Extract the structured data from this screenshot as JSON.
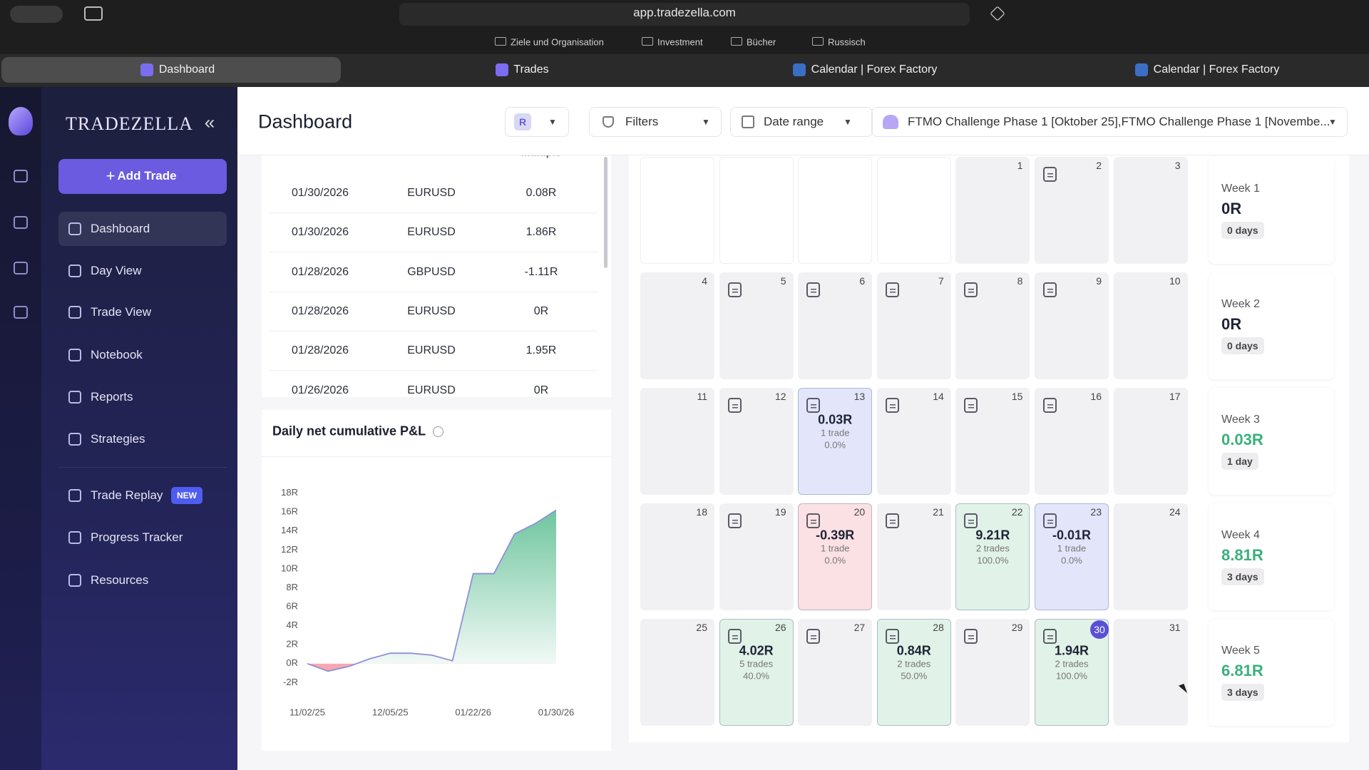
{
  "browser": {
    "url": "app.tradezella.com",
    "bookmarks": [
      "Ziele und Organisation",
      "Investment",
      "Bücher",
      "Russisch"
    ],
    "tabs": [
      "Dashboard",
      "Trades",
      "Calendar | Forex Factory",
      "Calendar | Forex Factory"
    ]
  },
  "sidebar": {
    "brand": "TRADEZELLA",
    "add_trade": "Add Trade",
    "nav": [
      {
        "label": "Dashboard",
        "active": true
      },
      {
        "label": "Day View"
      },
      {
        "label": "Trade View"
      },
      {
        "label": "Notebook"
      },
      {
        "label": "Reports"
      },
      {
        "label": "Strategies"
      },
      {
        "label": "Trade Replay",
        "badge": "NEW"
      },
      {
        "label": "Progress Tracker"
      },
      {
        "label": "Resources"
      }
    ]
  },
  "header": {
    "title": "Dashboard",
    "chip": "R",
    "filters": "Filters",
    "date_range": "Date range",
    "accounts": "FTMO Challenge Phase 1 [Oktober 25],FTMO Challenge Phase 1 [Novembe..."
  },
  "trades_table": {
    "header": "Multiple",
    "rows": [
      [
        "01/30/2026",
        "EURUSD",
        "0.08R"
      ],
      [
        "01/30/2026",
        "EURUSD",
        "1.86R"
      ],
      [
        "01/28/2026",
        "GBPUSD",
        "-1.11R"
      ],
      [
        "01/28/2026",
        "EURUSD",
        "0R"
      ],
      [
        "01/28/2026",
        "EURUSD",
        "1.95R"
      ],
      [
        "01/26/2026",
        "EURUSD",
        "0R"
      ]
    ]
  },
  "pnl_chart": {
    "type": "area",
    "title": "Daily net cumulative P&L",
    "categories": [
      "11/02/25",
      null,
      null,
      null,
      "12/05/25",
      null,
      null,
      null,
      "01/22/26",
      null,
      null,
      null,
      "01/30/26"
    ],
    "values": [
      0,
      -0.8,
      -0.3,
      0.5,
      1.1,
      1.1,
      0.9,
      0.3,
      9.5,
      9.5,
      13.7,
      14.8,
      16.2
    ],
    "ylim": [
      -2.8,
      18.8
    ],
    "yticks": [
      {
        "value": -2,
        "label": "-2R"
      },
      {
        "value": 0,
        "label": "0R"
      },
      {
        "value": 2,
        "label": "2R"
      },
      {
        "value": 4,
        "label": "4R"
      },
      {
        "value": 6,
        "label": "6R"
      },
      {
        "value": 8,
        "label": "8R"
      },
      {
        "value": 10,
        "label": "10R"
      },
      {
        "value": 12,
        "label": "12R"
      },
      {
        "value": 14,
        "label": "14R"
      },
      {
        "value": 16,
        "label": "16R"
      },
      {
        "value": 18,
        "label": "18R"
      }
    ],
    "line_color": "#8f90d8",
    "fill_color": "#3fb27f",
    "negative_color": "#f06a7a"
  },
  "calendar": {
    "rows": [
      [
        null,
        null,
        null,
        null,
        {
          "day": 1
        },
        {
          "day": 2,
          "note": true
        },
        {
          "day": 3
        }
      ],
      [
        {
          "day": 4
        },
        {
          "day": 5,
          "note": true
        },
        {
          "day": 6,
          "note": true
        },
        {
          "day": 7,
          "note": true
        },
        {
          "day": 8,
          "note": true
        },
        {
          "day": 9,
          "note": true
        },
        {
          "day": 10
        }
      ],
      [
        {
          "day": 11
        },
        {
          "day": 12,
          "note": true
        },
        {
          "day": 13,
          "note": true,
          "pnl": "0.03R",
          "trades": "1 trade",
          "win_rate": "0.0%",
          "color": "#e3e6fb"
        },
        {
          "day": 14,
          "note": true
        },
        {
          "day": 15,
          "note": true
        },
        {
          "day": 16,
          "note": true
        },
        {
          "day": 17
        }
      ],
      [
        {
          "day": 18
        },
        {
          "day": 19,
          "note": true
        },
        {
          "day": 20,
          "note": true,
          "pnl": "-0.39R",
          "trades": "1 trade",
          "win_rate": "0.0%",
          "color": "#fbe1e3"
        },
        {
          "day": 21,
          "note": true
        },
        {
          "day": 22,
          "note": true,
          "pnl": "9.21R",
          "trades": "2 trades",
          "win_rate": "100.0%",
          "color": "#e1f2e8"
        },
        {
          "day": 23,
          "note": true,
          "pnl": "-0.01R",
          "trades": "1 trade",
          "win_rate": "0.0%",
          "color": "#e3e6fb"
        },
        {
          "day": 24
        }
      ],
      [
        {
          "day": 25
        },
        {
          "day": 26,
          "note": true,
          "pnl": "4.02R",
          "trades": "5 trades",
          "win_rate": "40.0%",
          "color": "#e1f2e8"
        },
        {
          "day": 27,
          "note": true
        },
        {
          "day": 28,
          "note": true,
          "pnl": "0.84R",
          "trades": "2 trades",
          "win_rate": "50.0%",
          "color": "#e1f2e8"
        },
        {
          "day": 29,
          "note": true
        },
        {
          "day": 30,
          "note": true,
          "pnl": "1.94R",
          "trades": "2 trades",
          "win_rate": "100.0%",
          "color": "#e1f2e8",
          "today": true
        },
        {
          "day": 31
        }
      ]
    ],
    "weeks": [
      {
        "label": "Week 1",
        "pnl": "0R",
        "days": "0 days"
      },
      {
        "label": "Week 2",
        "pnl": "0R",
        "days": "0 days"
      },
      {
        "label": "Week 3",
        "pnl": "0.03R",
        "days": "1 day",
        "color": "#3ab07d"
      },
      {
        "label": "Week 4",
        "pnl": "8.81R",
        "days": "3 days",
        "color": "#3ab07d"
      },
      {
        "label": "Week 5",
        "pnl": "6.81R",
        "days": "3 days",
        "color": "#3ab07d"
      }
    ]
  }
}
